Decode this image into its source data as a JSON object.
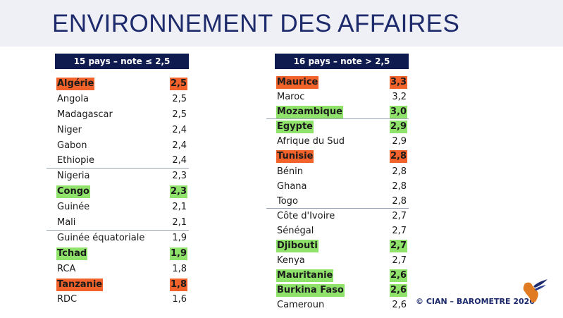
{
  "title": "ENVIRONNEMENT DES AFFAIRES",
  "left_table": {
    "header": "15 pays – note ≤ 2,5",
    "rows": [
      {
        "country": "Algérie",
        "score": "2,5",
        "highlight": "orange"
      },
      {
        "country": "Angola",
        "score": "2,5",
        "highlight": ""
      },
      {
        "country": "Madagascar",
        "score": "2,5",
        "highlight": ""
      },
      {
        "country": "Niger",
        "score": "2,4",
        "highlight": ""
      },
      {
        "country": "Gabon",
        "score": "2,4",
        "highlight": ""
      },
      {
        "country": "Ethiopie",
        "score": "2,4",
        "highlight": ""
      },
      {
        "country": "Nigeria",
        "score": "2,3",
        "highlight": ""
      },
      {
        "country": "Congo",
        "score": "2,3",
        "highlight": "green"
      },
      {
        "country": "Guinée",
        "score": "2,1",
        "highlight": ""
      },
      {
        "country": "Mali",
        "score": "2,1",
        "highlight": ""
      },
      {
        "country": "Guinée équatoriale",
        "score": "1,9",
        "highlight": ""
      },
      {
        "country": "Tchad",
        "score": "1,9",
        "highlight": "green"
      },
      {
        "country": "RCA",
        "score": "1,8",
        "highlight": ""
      },
      {
        "country": "Tanzanie",
        "score": "1,8",
        "highlight": "orange"
      },
      {
        "country": "RDC",
        "score": "1,6",
        "highlight": ""
      }
    ]
  },
  "right_table": {
    "header": "16 pays – note > 2,5",
    "rows": [
      {
        "country": "Maurice",
        "score": "3,3",
        "highlight": "orange"
      },
      {
        "country": "Maroc",
        "score": "3,2",
        "highlight": ""
      },
      {
        "country": "Mozambique",
        "score": "3,0",
        "highlight": "green"
      },
      {
        "country": "Egypte",
        "score": "2,9",
        "highlight": "green"
      },
      {
        "country": "Afrique du Sud",
        "score": "2,9",
        "highlight": ""
      },
      {
        "country": "Tunisie",
        "score": "2,8",
        "highlight": "orange"
      },
      {
        "country": "Bénin",
        "score": "2,8",
        "highlight": ""
      },
      {
        "country": "Ghana",
        "score": "2,8",
        "highlight": ""
      },
      {
        "country": "Togo",
        "score": "2,8",
        "highlight": ""
      },
      {
        "country": "Côte d'Ivoire",
        "score": "2,7",
        "highlight": ""
      },
      {
        "country": "Sénégal",
        "score": "2,7",
        "highlight": ""
      },
      {
        "country": "Djibouti",
        "score": "2,7",
        "highlight": "green"
      },
      {
        "country": "Kenya",
        "score": "2,7",
        "highlight": ""
      },
      {
        "country": "Mauritanie",
        "score": "2,6",
        "highlight": "green"
      },
      {
        "country": "Burkina Faso",
        "score": "2,6",
        "highlight": "green"
      },
      {
        "country": "Cameroun",
        "score": "2,6",
        "highlight": ""
      }
    ]
  },
  "footer": "© CIAN – BAROMETRE 2020",
  "colors": {
    "title": "#1d2a6b",
    "header_bg": "#0f1a4f",
    "orange_highlight": "#f2622b",
    "green_highlight": "#8fe36b"
  },
  "icons": {
    "logo": "cian-bird-africa-logo"
  }
}
